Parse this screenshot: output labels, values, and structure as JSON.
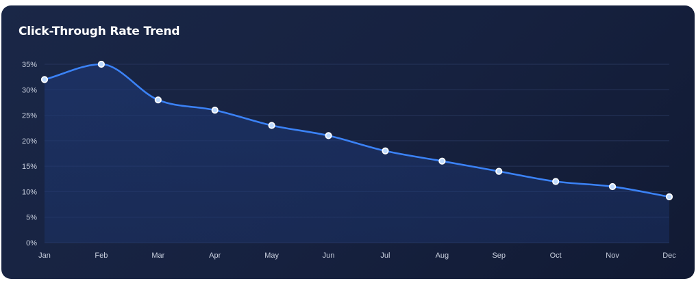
{
  "chart_data": {
    "type": "area",
    "title": "Click-Through Rate Trend",
    "xlabel": "",
    "ylabel": "",
    "categories": [
      "Jan",
      "Feb",
      "Mar",
      "Apr",
      "May",
      "Jun",
      "Jul",
      "Aug",
      "Sep",
      "Oct",
      "Nov",
      "Dec"
    ],
    "series": [
      {
        "values": [
          32,
          35,
          28,
          26,
          23,
          21,
          18,
          16,
          14,
          12,
          11,
          9
        ]
      }
    ],
    "ylim": [
      0,
      35
    ],
    "yticks": [
      0,
      5,
      10,
      15,
      20,
      25,
      30,
      35
    ],
    "ytick_suffix": "%",
    "grid": true,
    "legend": "none",
    "colors": {
      "line": "#3b82f6",
      "marker_fill": "#bfdbfe",
      "marker_stroke": "#ffffff",
      "grid": "#26345a"
    }
  }
}
